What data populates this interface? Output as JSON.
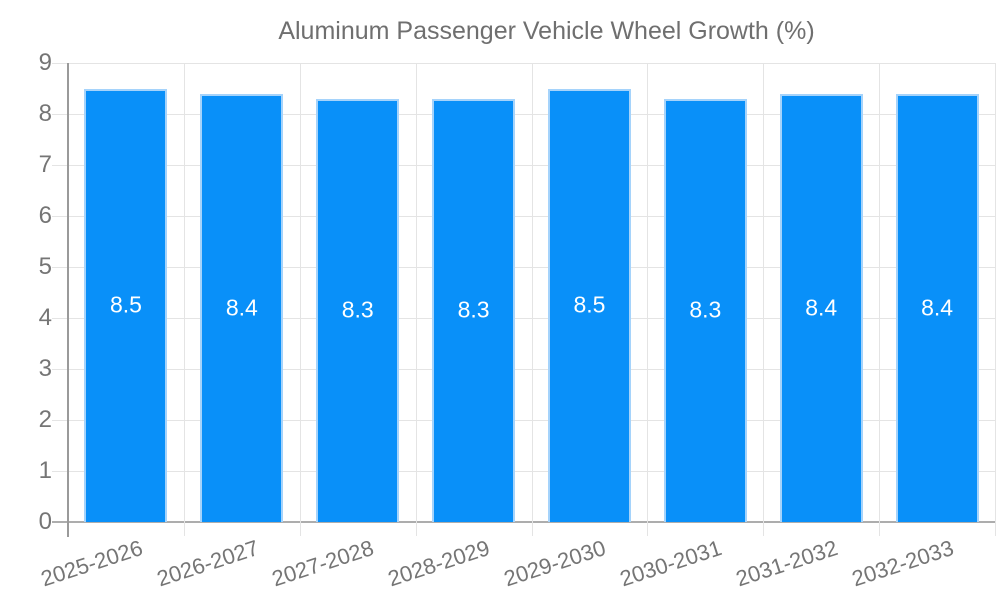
{
  "chart_data": {
    "type": "bar",
    "title": "Aluminum Passenger Vehicle Wheel Growth (%)",
    "legend_position": "top-center",
    "categories": [
      "2025-2026",
      "2026-2027",
      "2027-2028",
      "2028-2029",
      "2029-2030",
      "2030-2031",
      "2031-2032",
      "2032-2033"
    ],
    "values": [
      8.5,
      8.4,
      8.3,
      8.3,
      8.5,
      8.3,
      8.4,
      8.4
    ],
    "value_labels": [
      "8.5",
      "8.4",
      "8.3",
      "8.3",
      "8.5",
      "8.3",
      "8.4",
      "8.4"
    ],
    "xlabel": "",
    "ylabel": "",
    "ylim": [
      0,
      9
    ],
    "ytick_step": 1,
    "ytick_labels": [
      "0",
      "1",
      "2",
      "3",
      "4",
      "5",
      "6",
      "7",
      "8",
      "9"
    ],
    "grid": "on",
    "colors": {
      "bar_fill": "#0990f9",
      "bar_border": "#a5d3fb",
      "bar_value_text": "#ffffff",
      "grid_line": "#e4e4e4",
      "axis_line": "#a5a5a5",
      "tick_text": "#757575",
      "legend_text": "#6f6f6f",
      "background": "#ffffff"
    }
  }
}
